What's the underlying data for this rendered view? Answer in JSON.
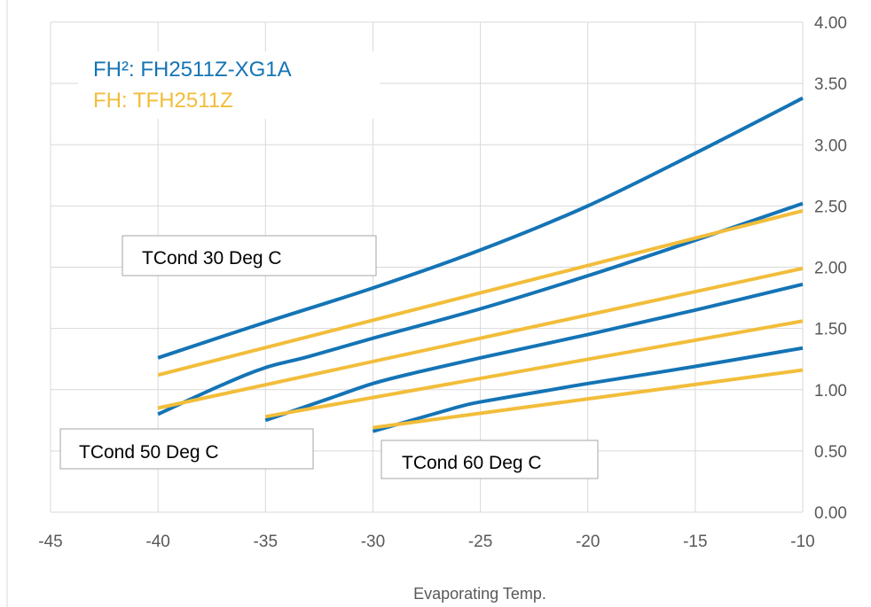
{
  "chart_data": {
    "type": "line",
    "xlabel": "Evaporating Temp.",
    "ylabel": "",
    "xlim": [
      -45,
      -10
    ],
    "ylim": [
      0,
      4
    ],
    "x_ticks": [
      -45,
      -40,
      -35,
      -30,
      -25,
      -20,
      -15,
      -10
    ],
    "x_tick_labels": [
      "-45",
      "-40",
      "-35",
      "-30",
      "-25",
      "-20",
      "-15",
      "-10"
    ],
    "y_ticks": [
      0,
      0.5,
      1,
      1.5,
      2,
      2.5,
      3,
      3.5,
      4
    ],
    "y_tick_labels": [
      "0.00",
      "0.50",
      "1.00",
      "1.50",
      "2.00",
      "2.50",
      "3.00",
      "3.50",
      "4.00"
    ],
    "y_axis_side": "right",
    "grid": true,
    "legend_position": "top-left",
    "legend": [
      {
        "text": "FH²: FH2511Z-XG1A",
        "color": "#1474b5"
      },
      {
        "text": "FH: TFH2511Z",
        "color": "#f2bd3a"
      }
    ],
    "annotations": [
      "TCond 30 Deg C",
      "TCond 50 Deg C",
      "TCond 60 Deg C"
    ],
    "series": [
      {
        "color": "#1474b5",
        "x": [
          -40,
          -35,
          -30,
          -25,
          -20,
          -15,
          -10
        ],
        "y": [
          1.26,
          1.55,
          1.83,
          2.14,
          2.5,
          2.93,
          3.38
        ]
      },
      {
        "color": "#1474b5",
        "x": [
          -40,
          -37,
          -35,
          -33,
          -30,
          -25,
          -20,
          -15,
          -10
        ],
        "y": [
          0.8,
          1.04,
          1.18,
          1.27,
          1.42,
          1.66,
          1.93,
          2.22,
          2.52
        ]
      },
      {
        "color": "#1474b5",
        "x": [
          -35,
          -32,
          -30,
          -28,
          -25,
          -20,
          -15,
          -10
        ],
        "y": [
          0.75,
          0.93,
          1.05,
          1.14,
          1.26,
          1.45,
          1.65,
          1.86
        ]
      },
      {
        "color": "#1474b5",
        "x": [
          -30,
          -28,
          -26,
          -25,
          -22,
          -20,
          -15,
          -10
        ],
        "y": [
          0.66,
          0.76,
          0.86,
          0.9,
          0.99,
          1.05,
          1.19,
          1.34
        ]
      },
      {
        "color": "#f2bd3a",
        "x": [
          -40,
          -10
        ],
        "y": [
          1.12,
          2.46
        ]
      },
      {
        "color": "#f2bd3a",
        "x": [
          -40,
          -10
        ],
        "y": [
          0.85,
          1.99
        ]
      },
      {
        "color": "#f2bd3a",
        "x": [
          -35,
          -10
        ],
        "y": [
          0.78,
          1.56
        ]
      },
      {
        "color": "#f2bd3a",
        "x": [
          -30,
          -10
        ],
        "y": [
          0.69,
          1.16
        ]
      }
    ]
  }
}
